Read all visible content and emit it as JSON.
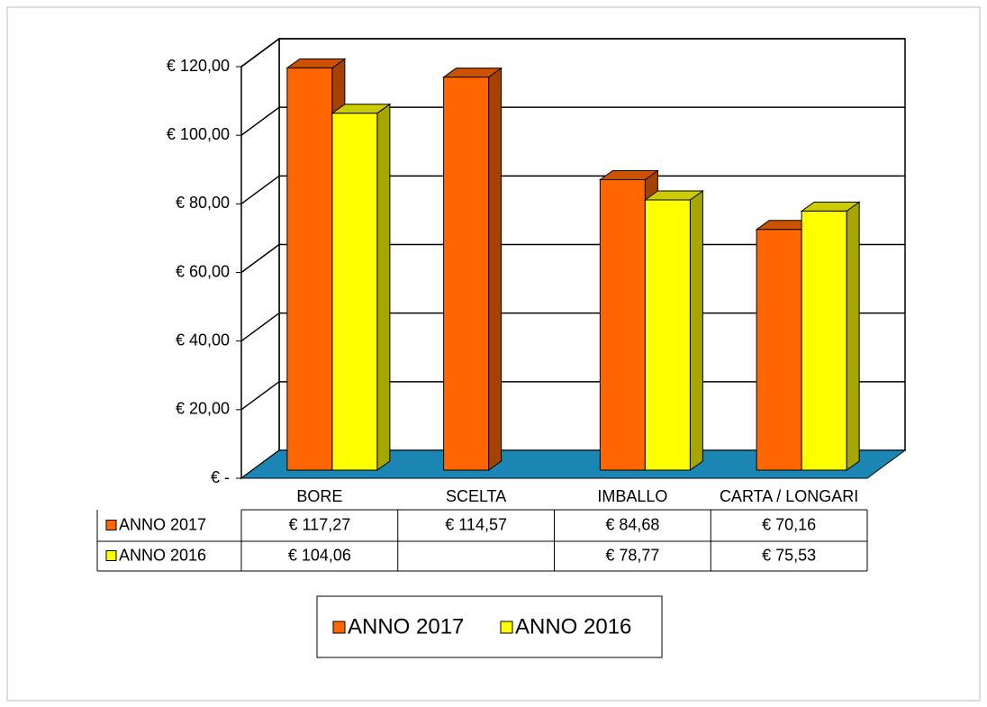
{
  "chart_data": {
    "type": "bar3d",
    "categories": [
      "BORE",
      "SCELTA",
      "IMBALLO",
      "CARTA / LONGARI"
    ],
    "series": [
      {
        "name": "ANNO 2017",
        "color": "#ff6600",
        "values": [
          117.27,
          114.57,
          84.68,
          70.16
        ],
        "value_labels": [
          "€ 117,27",
          "€ 114,57",
          "€ 84,68",
          "€ 70,16"
        ]
      },
      {
        "name": "ANNO 2016",
        "color": "#ffff00",
        "values": [
          104.06,
          null,
          78.77,
          75.53
        ],
        "value_labels": [
          "€ 104,06",
          null,
          "€ 78,77",
          "€ 75,53"
        ]
      }
    ],
    "ylim": [
      0,
      120
    ],
    "yticks": [
      {
        "value": 0,
        "label": "€ -"
      },
      {
        "value": 20,
        "label": "€ 20,00"
      },
      {
        "value": 40,
        "label": "€ 40,00"
      },
      {
        "value": 60,
        "label": "€ 60,00"
      },
      {
        "value": 80,
        "label": "€ 80,00"
      },
      {
        "value": 100,
        "label": "€ 100,00"
      },
      {
        "value": 120,
        "label": "€ 120,00"
      }
    ],
    "grid": true,
    "legend": "bottom"
  }
}
